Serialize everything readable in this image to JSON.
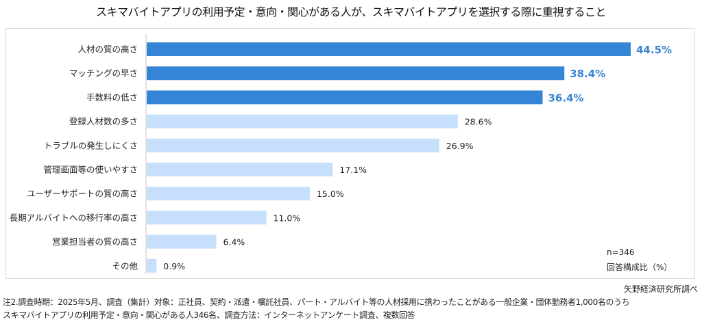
{
  "chart_data": {
    "type": "bar",
    "orientation": "horizontal",
    "title": "スキマバイトアプリの利用予定・意向・関心がある人が、スキマバイトアプリを選択する際に重視すること",
    "categories": [
      "人材の質の高さ",
      "マッチングの早さ",
      "手数料の低さ",
      "登録人材数の多さ",
      "トラブルの発生しにくさ",
      "管理画面等の使いやすさ",
      "ユーザーサポートの質の高さ",
      "長期アルバイトへの移行率の高さ",
      "営業担当者の質の高さ",
      "その他"
    ],
    "values": [
      44.5,
      38.4,
      36.4,
      28.6,
      26.9,
      17.1,
      15.0,
      11.0,
      6.4,
      0.9
    ],
    "value_labels": [
      "44.5%",
      "38.4%",
      "36.4%",
      "28.6%",
      "26.9%",
      "17.1%",
      "15.0%",
      "11.0%",
      "6.4%",
      "0.9%"
    ],
    "highlight_top": 3,
    "xlim": [
      0,
      50
    ],
    "xlabel": "",
    "ylabel": "",
    "grid": false,
    "colors": {
      "highlight": "#3585d6",
      "normal": "#c6e0fb",
      "highlight_label": "#3a85d2",
      "normal_label": "#222222",
      "axis": "#d9d9d9"
    },
    "sample_note": "n=346",
    "unit_note": "回答構成比（%）"
  },
  "source": "矢野経済研究所調べ",
  "footnotes": [
    "注2.調査時期：2025年5月、調査（集計）対象：正社員、契約・派遣・嘱託社員、パート・アルバイト等の人材採用に携わったことがある一般企業・団体勤務者1,000名のうち",
    "スキマバイトアプリの利用予定・意向・関心がある人346名、調査方法：インターネットアンケート調査、複数回答"
  ]
}
